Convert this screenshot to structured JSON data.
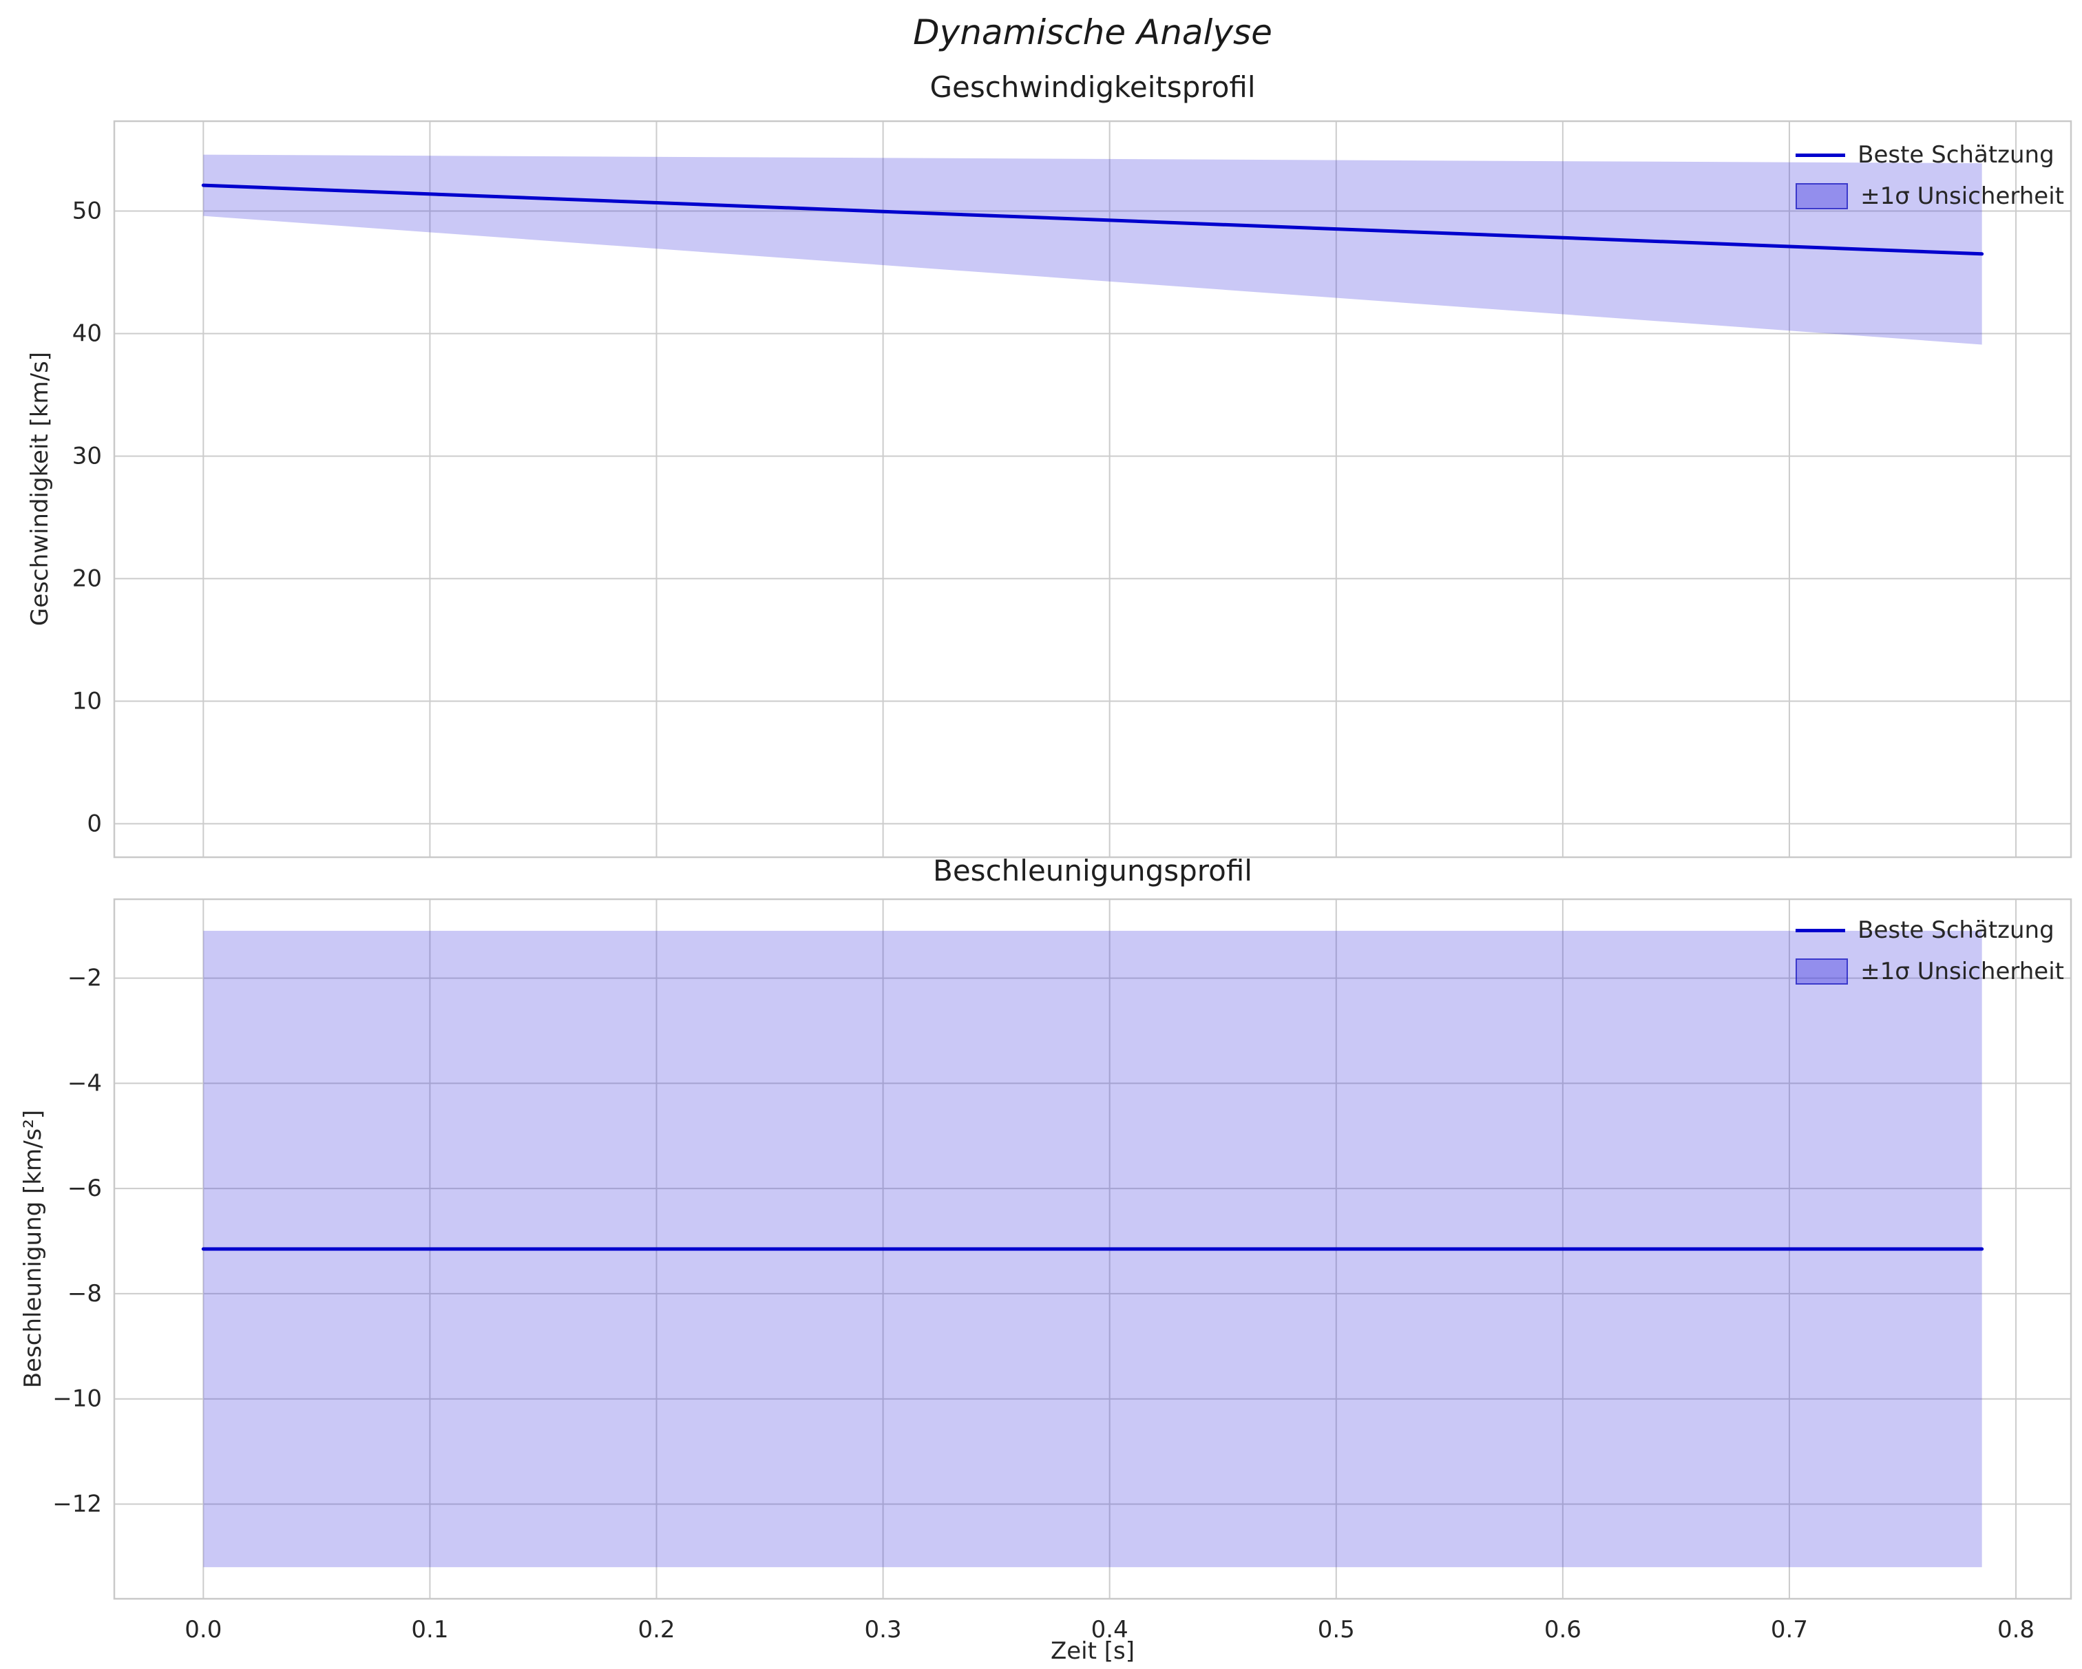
{
  "figure": {
    "suptitle": "Dynamische Analyse"
  },
  "style": {
    "background": "#ffffff",
    "text_color": "#262626",
    "grid_color": "#cccccc",
    "spine_color": "#c9c9c9",
    "line_color": "#0000cd",
    "band_fill": "rgba(64,56,224,0.28)",
    "legend_patch_fill": "rgba(64,56,224,0.4)",
    "legend_patch_border": "rgba(0,0,180,0.6)"
  },
  "chart_data": [
    {
      "type": "line",
      "title": "Geschwindigkeitsprofil",
      "ylabel": "Geschwindigkeit [km/s]",
      "xlabel": "",
      "x": [
        0.0,
        0.785
      ],
      "series": [
        {
          "name": "Beste Schätzung",
          "values": [
            52.1,
            46.5
          ]
        }
      ],
      "band": {
        "name": "±1σ Unsicherheit",
        "upper": [
          54.6,
          53.9
        ],
        "lower": [
          49.6,
          39.1
        ]
      },
      "legend": [
        {
          "label": "Beste Schätzung",
          "marker": "line"
        },
        {
          "label": "±1σ Unsicherheit",
          "marker": "patch"
        }
      ],
      "legend_position": "upper right",
      "grid": true,
      "xlim": [
        -0.0393,
        0.8243
      ],
      "ylim": [
        -2.73,
        57.33
      ],
      "xticks": [
        0.0,
        0.1,
        0.2,
        0.3,
        0.4,
        0.5,
        0.6,
        0.7,
        0.8
      ],
      "xtick_labels": [],
      "ytick_values": [
        0,
        10,
        20,
        30,
        40,
        50
      ],
      "ytick_labels": [
        "0",
        "10",
        "20",
        "30",
        "40",
        "50"
      ]
    },
    {
      "type": "line",
      "title": "Beschleunigungsprofil",
      "ylabel": "Beschleunigung [km/s²]",
      "xlabel": "Zeit [s]",
      "x": [
        0.0,
        0.785
      ],
      "series": [
        {
          "name": "Beste Schätzung",
          "values": [
            -7.15,
            -7.15
          ]
        }
      ],
      "band": {
        "name": "±1σ Unsicherheit",
        "upper": [
          -1.1,
          -1.1
        ],
        "lower": [
          -13.2,
          -13.2
        ]
      },
      "legend": [
        {
          "label": "Beste Schätzung",
          "marker": "line"
        },
        {
          "label": "±1σ Unsicherheit",
          "marker": "patch"
        }
      ],
      "legend_position": "upper right",
      "grid": true,
      "xlim": [
        -0.0393,
        0.8243
      ],
      "ylim": [
        -13.8,
        -0.5
      ],
      "xticks": [
        0.0,
        0.1,
        0.2,
        0.3,
        0.4,
        0.5,
        0.6,
        0.7,
        0.8
      ],
      "xtick_labels": [
        "0.0",
        "0.1",
        "0.2",
        "0.3",
        "0.4",
        "0.5",
        "0.6",
        "0.7",
        "0.8"
      ],
      "ytick_values": [
        -12,
        -10,
        -8,
        -6,
        -4,
        -2
      ],
      "ytick_labels": [
        "−12",
        "−10",
        "−8",
        "−6",
        "−4",
        "−2"
      ]
    }
  ]
}
